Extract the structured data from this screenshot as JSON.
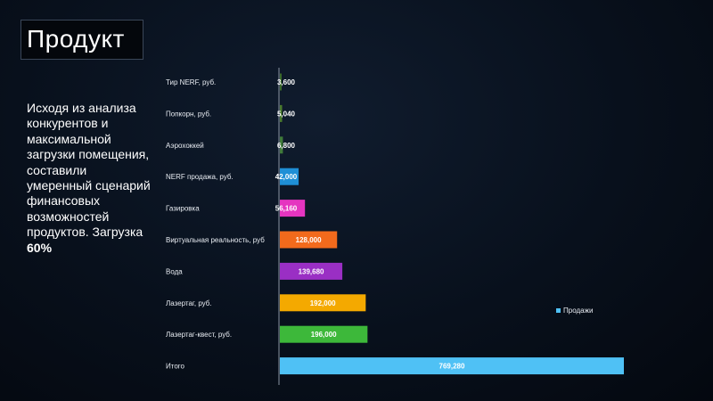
{
  "slide": {
    "title": "Продукт",
    "description_main": "Исходя из анализа конкурентов и максимальной загрузки помещения, составили умеренный сценарий финансовых возможностей продуктов. Загрузка ",
    "description_bold": "60%"
  },
  "chart_data": {
    "type": "bar",
    "orientation": "horizontal",
    "categories": [
      "Тир NERF, руб.",
      "Попкорн, руб.",
      "Аэрохоккей",
      "NERF продажа, руб.",
      "Газировка",
      "Виртуальная реальность, руб",
      "Вода",
      "Лазертаг, руб.",
      "Лазертаг-квест, руб.",
      "Итого"
    ],
    "series": [
      {
        "name": "Продажи",
        "values": [
          3600,
          5040,
          6800,
          42000,
          56160,
          128000,
          139680,
          192000,
          196000,
          769280
        ],
        "value_labels": [
          "3,600",
          "5,040",
          "6,800",
          "42,000",
          "56,160",
          "128,000",
          "139,680",
          "192,000",
          "196,000",
          "769,280"
        ]
      }
    ],
    "bar_colors": [
      "#3a6a2a",
      "#4a7a2e",
      "#3f7a3a",
      "#1f8fd6",
      "#e535c0",
      "#f26a1c",
      "#9a2fc4",
      "#f4a900",
      "#3db83a",
      "#4fc1f5"
    ],
    "legend_color": "#4fc1f5",
    "legend_position": "right",
    "xlim": [
      0,
      769280
    ],
    "grid": false
  }
}
